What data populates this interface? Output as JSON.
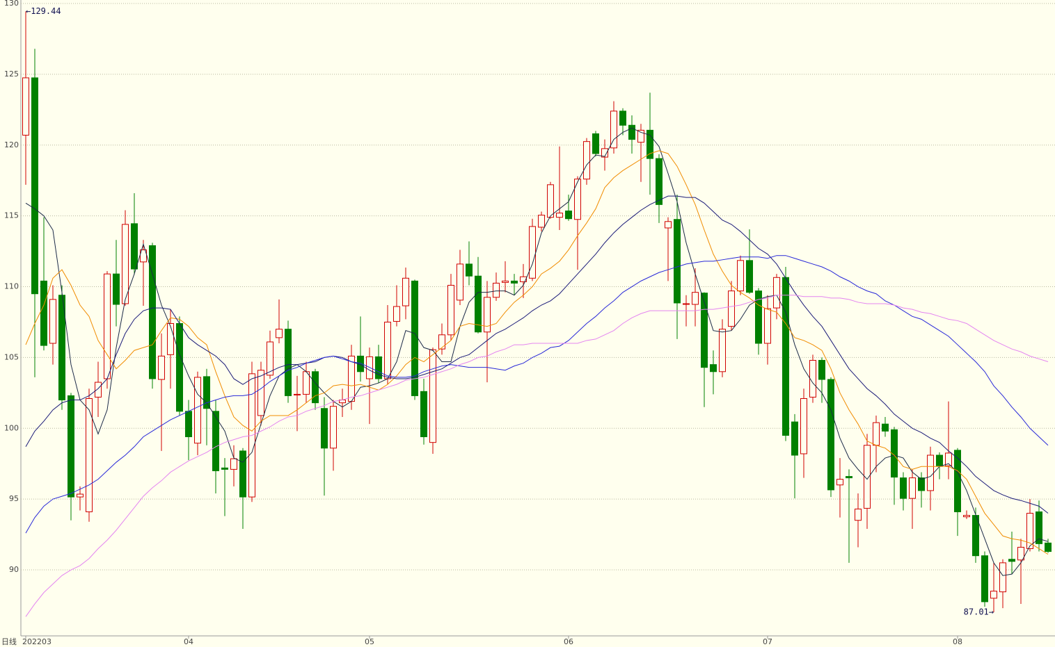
{
  "chart_data": {
    "type": "candlestick",
    "label": "日线",
    "annotations": [
      "←129.44",
      "87.01→"
    ],
    "up_color": "#d00000",
    "down_color": "#008000",
    "grid": true,
    "ylim": [
      85.34,
      130
    ],
    "yticks": [
      90,
      95,
      100,
      105,
      110,
      115,
      120,
      125,
      130
    ],
    "categories": [
      "202203",
      null,
      null,
      null,
      null,
      null,
      null,
      null,
      null,
      null,
      null,
      null,
      null,
      null,
      null,
      null,
      null,
      null,
      "04",
      null,
      null,
      null,
      null,
      null,
      null,
      null,
      null,
      null,
      null,
      null,
      null,
      null,
      null,
      null,
      null,
      null,
      null,
      null,
      "05",
      null,
      null,
      null,
      null,
      null,
      null,
      null,
      null,
      null,
      null,
      null,
      null,
      null,
      null,
      null,
      null,
      null,
      null,
      null,
      null,
      null,
      "06",
      null,
      null,
      null,
      null,
      null,
      null,
      null,
      null,
      null,
      null,
      null,
      null,
      null,
      null,
      null,
      null,
      null,
      null,
      null,
      null,
      null,
      "07",
      null,
      null,
      null,
      null,
      null,
      null,
      null,
      null,
      null,
      null,
      null,
      null,
      null,
      null,
      null,
      null,
      null,
      null,
      null,
      null,
      "08",
      null,
      null,
      null,
      null,
      null,
      null,
      null,
      null,
      null,
      null
    ],
    "open": [
      120.7,
      124.75,
      110.4,
      106.0,
      109.4,
      102.3,
      95.15,
      94.1,
      102.2,
      103.5,
      110.9,
      108.8,
      114.45,
      111.75,
      112.9,
      103.45,
      105.2,
      107.4,
      101.2,
      98.95,
      103.65,
      101.2,
      97.2,
      97.1,
      98.4,
      95.15,
      100.9,
      103.75,
      106.4,
      107.0,
      102.35,
      102.4,
      104.0,
      101.4,
      98.6,
      101.8,
      101.9,
      105.1,
      103.5,
      105.05,
      103.5,
      107.55,
      108.65,
      110.4,
      102.6,
      99.0,
      105.6,
      106.6,
      109.05,
      111.6,
      110.75,
      106.8,
      109.25,
      110.3,
      110.4,
      110.35,
      110.6,
      114.2,
      114.9,
      114.9,
      115.35,
      114.75,
      117.6,
      120.8,
      119.15,
      119.8,
      122.4,
      121.4,
      120.2,
      121.05,
      119.05,
      114.15,
      114.75,
      108.75,
      108.75,
      109.55,
      104.5,
      104.0,
      107.2,
      109.7,
      111.85,
      109.7,
      106.0,
      108.5,
      110.65,
      100.45,
      98.2,
      102.2,
      104.8,
      103.45,
      96.0,
      96.6,
      93.5,
      94.35,
      98.8,
      100.3,
      99.9,
      96.5,
      95.05,
      96.5,
      95.6,
      98.1,
      97.35,
      98.45,
      93.75,
      93.85,
      91.0,
      88.0,
      88.45,
      90.75,
      90.7,
      91.5,
      94.1,
      91.9
    ],
    "high": [
      129.44,
      126.8,
      114.9,
      110.1,
      110.1,
      102.5,
      95.9,
      102.8,
      104.7,
      111.1,
      113.3,
      115.4,
      116.6,
      113.3,
      113.1,
      106.7,
      108.4,
      107.9,
      102.0,
      104.0,
      104.2,
      102.0,
      97.9,
      98.8,
      98.6,
      104.7,
      104.7,
      106.9,
      109.1,
      107.6,
      103.7,
      104.7,
      104.2,
      102.2,
      102.0,
      102.8,
      105.9,
      107.9,
      105.7,
      105.9,
      108.7,
      110.1,
      111.35,
      110.5,
      103.5,
      105.7,
      107.4,
      110.9,
      112.6,
      113.2,
      112.1,
      110.4,
      111.0,
      111.8,
      110.9,
      111.6,
      114.8,
      115.3,
      117.4,
      119.9,
      116.5,
      117.8,
      120.5,
      121.0,
      120.4,
      123.1,
      122.6,
      122.1,
      121.5,
      123.7,
      119.35,
      114.9,
      116.5,
      109.4,
      111.3,
      109.6,
      105.5,
      107.7,
      110.4,
      112.2,
      114.05,
      109.9,
      109.4,
      110.9,
      111.4,
      101.0,
      102.8,
      105.2,
      105.0,
      103.6,
      97.9,
      97.1,
      95.4,
      99.6,
      100.9,
      100.8,
      100.1,
      96.9,
      97.1,
      96.9,
      98.7,
      98.3,
      101.9,
      98.6,
      94.2,
      94.4,
      91.3,
      90.5,
      90.75,
      92.7,
      92.2,
      95.0,
      94.9,
      92.2
    ],
    "low": [
      117.2,
      103.6,
      105.5,
      104.5,
      101.3,
      93.5,
      94.2,
      93.4,
      100.8,
      102.8,
      107.2,
      108.65,
      110.85,
      108.65,
      102.8,
      98.4,
      102.8,
      100.9,
      97.75,
      98.1,
      98.8,
      95.4,
      93.8,
      95.9,
      92.9,
      94.8,
      100.2,
      103.5,
      106.0,
      101.8,
      99.8,
      101.8,
      101.3,
      95.25,
      97.0,
      100.8,
      101.3,
      103.3,
      100.3,
      103.2,
      103.1,
      107.2,
      107.7,
      102.0,
      98.85,
      98.2,
      105.2,
      106.2,
      108.7,
      110.1,
      106.7,
      103.25,
      109.0,
      109.6,
      109.4,
      109.2,
      110.4,
      113.9,
      114.8,
      114.0,
      114.65,
      111.2,
      117.2,
      119.2,
      118.2,
      119.4,
      120.7,
      119.4,
      117.4,
      116.5,
      114.5,
      110.4,
      106.3,
      107.2,
      107.2,
      101.5,
      102.4,
      103.6,
      106.9,
      109.4,
      109.5,
      105.2,
      104.5,
      107.7,
      99.1,
      95.05,
      96.5,
      101.8,
      101.8,
      95.15,
      93.7,
      90.5,
      91.6,
      92.9,
      96.9,
      99.4,
      94.6,
      94.2,
      92.9,
      94.4,
      94.2,
      96.4,
      96.4,
      92.4,
      93.6,
      90.5,
      87.4,
      87.01,
      87.3,
      89.7,
      87.6,
      91.3,
      91.3,
      91.2
    ],
    "close": [
      124.75,
      109.5,
      105.85,
      109.1,
      102.0,
      95.15,
      95.35,
      102.1,
      103.25,
      110.9,
      108.75,
      114.4,
      111.25,
      112.6,
      103.5,
      105.1,
      107.4,
      101.2,
      99.4,
      103.6,
      101.4,
      97.0,
      97.1,
      97.85,
      95.15,
      103.85,
      104.1,
      106.1,
      107.0,
      102.3,
      102.4,
      104.0,
      101.8,
      98.6,
      101.55,
      102.0,
      105.1,
      104.0,
      105.05,
      103.5,
      107.5,
      108.6,
      110.6,
      102.3,
      99.4,
      105.55,
      106.6,
      110.1,
      111.6,
      110.75,
      106.8,
      109.25,
      110.25,
      110.4,
      110.25,
      110.7,
      114.25,
      115.05,
      117.2,
      115.2,
      114.8,
      117.6,
      120.25,
      119.4,
      119.75,
      122.4,
      121.4,
      120.4,
      121.05,
      119.05,
      115.8,
      114.6,
      108.85,
      108.8,
      109.6,
      104.3,
      104.0,
      107.0,
      109.7,
      111.85,
      109.6,
      106.0,
      108.45,
      110.65,
      99.5,
      98.1,
      102.1,
      104.8,
      103.45,
      95.65,
      96.4,
      96.5,
      94.3,
      98.8,
      100.4,
      99.8,
      96.55,
      95.05,
      96.5,
      95.6,
      98.1,
      97.35,
      98.25,
      94.1,
      93.85,
      91.0,
      87.75,
      88.5,
      90.5,
      90.6,
      91.6,
      94.0,
      91.85,
      91.3
    ],
    "lines": [
      {
        "color": "#1c2a48",
        "values": [
          115.9,
          115.5,
          115.0,
          114.0,
          109.6,
          104.5,
          102.0,
          101.3,
          99.6,
          101.3,
          105.7,
          109.1,
          110.9,
          113.0,
          110.9,
          108.7,
          107.2,
          105.2,
          103.7,
          102.4,
          101.8,
          100.8,
          99.8,
          97.9,
          97.6,
          98.3,
          100.3,
          102.3,
          103.7,
          104.2,
          104.5,
          104.0,
          103.2,
          102.5,
          101.9,
          101.5,
          101.9,
          102.9,
          103.0,
          103.2,
          103.5,
          104.7,
          106.9,
          106.7,
          105.7,
          105.5,
          104.7,
          104.7,
          107.2,
          108.9,
          109.6,
          109.6,
          109.7,
          109.7,
          109.4,
          110.1,
          111.6,
          113.8,
          115.0,
          115.5,
          116.0,
          117.4,
          118.6,
          119.3,
          119.2,
          120.4,
          120.9,
          121.2,
          120.9,
          120.7,
          119.9,
          118.0,
          116.0,
          113.1,
          110.9,
          108.9,
          106.9,
          106.8,
          106.9,
          107.7,
          108.7,
          109.1,
          109.3,
          109.4,
          108.2,
          105.9,
          104.2,
          103.2,
          102.5,
          101.3,
          99.3,
          97.9,
          97.1,
          96.4,
          97.3,
          97.9,
          98.1,
          97.9,
          96.9,
          96.4,
          96.6,
          97.3,
          97.5,
          96.9,
          95.6,
          93.9,
          92.2,
          90.5,
          89.6,
          89.7,
          90.5,
          91.7,
          92.2,
          92.0
        ]
      },
      {
        "color": "#f08c00",
        "values": [
          105.9,
          107.4,
          108.7,
          110.6,
          111.2,
          110.1,
          108.7,
          107.9,
          106.2,
          105.2,
          104.2,
          104.8,
          105.5,
          105.7,
          105.9,
          106.9,
          107.8,
          107.7,
          107.2,
          106.4,
          105.9,
          104.0,
          102.3,
          100.8,
          100.2,
          99.8,
          100.5,
          100.9,
          100.9,
          100.9,
          101.3,
          101.8,
          102.3,
          102.5,
          103.0,
          103.1,
          103.0,
          103.1,
          102.9,
          102.7,
          103.1,
          103.7,
          104.5,
          105.0,
          104.7,
          105.2,
          105.7,
          106.2,
          107.2,
          107.4,
          107.3,
          107.2,
          107.4,
          108.2,
          108.9,
          109.4,
          110.0,
          110.9,
          111.3,
          111.8,
          112.6,
          113.6,
          114.5,
          115.5,
          117.0,
          117.7,
          118.2,
          118.6,
          119.0,
          119.4,
          119.6,
          119.4,
          118.5,
          117.2,
          115.8,
          114.0,
          112.3,
          111.1,
          110.1,
          109.6,
          109.2,
          108.7,
          108.4,
          108.2,
          107.4,
          106.4,
          106.2,
          105.9,
          105.5,
          104.2,
          102.5,
          101.3,
          100.3,
          99.1,
          98.8,
          98.6,
          98.1,
          97.3,
          97.1,
          97.3,
          97.3,
          97.3,
          97.3,
          97.0,
          96.4,
          95.2,
          94.0,
          93.2,
          92.4,
          92.2,
          92.1,
          91.9,
          91.5,
          91.1
        ]
      },
      {
        "color": "#1a1a78",
        "values": [
          98.7,
          99.8,
          100.5,
          101.3,
          101.8,
          102.0,
          102.0,
          102.3,
          102.8,
          103.5,
          105.2,
          106.7,
          107.7,
          108.3,
          108.5,
          108.5,
          108.4,
          107.4,
          106.4,
          105.9,
          105.5,
          105.1,
          104.5,
          103.5,
          103.1,
          103.5,
          103.7,
          104.0,
          104.3,
          104.5,
          104.5,
          104.6,
          104.7,
          105.0,
          105.1,
          105.0,
          104.7,
          104.5,
          104.1,
          103.8,
          103.6,
          103.5,
          103.5,
          103.6,
          103.8,
          104.0,
          104.2,
          104.6,
          105.0,
          105.2,
          105.7,
          106.2,
          106.7,
          107.0,
          107.4,
          107.8,
          108.3,
          108.7,
          109.0,
          109.5,
          110.2,
          110.9,
          111.6,
          112.3,
          113.1,
          113.8,
          114.4,
          114.9,
          115.4,
          115.8,
          116.1,
          116.4,
          116.4,
          116.3,
          116.3,
          115.9,
          115.3,
          114.7,
          114.4,
          113.9,
          113.3,
          112.7,
          112.3,
          111.6,
          110.6,
          109.6,
          108.7,
          107.9,
          107.2,
          106.2,
          105.2,
          104.2,
          103.5,
          102.8,
          102.3,
          101.7,
          101.0,
          100.5,
          100.0,
          99.7,
          99.3,
          99.0,
          98.4,
          97.9,
          97.3,
          96.6,
          96.1,
          95.6,
          95.3,
          95.05,
          94.9,
          94.7,
          94.5,
          94.0
        ]
      },
      {
        "color": "#2828d8",
        "values": [
          92.6,
          93.7,
          94.5,
          95.0,
          95.2,
          95.4,
          95.7,
          96.0,
          96.4,
          97.0,
          97.6,
          98.1,
          98.7,
          99.4,
          99.8,
          100.2,
          100.6,
          100.9,
          101.2,
          101.5,
          101.8,
          102.0,
          102.2,
          102.3,
          102.3,
          102.4,
          102.8,
          103.3,
          103.7,
          104.1,
          104.3,
          104.6,
          104.8,
          105.0,
          105.1,
          104.9,
          104.7,
          104.6,
          104.3,
          104.0,
          103.7,
          103.6,
          103.6,
          103.7,
          104.0,
          104.2,
          104.4,
          104.5,
          104.4,
          104.3,
          104.3,
          104.3,
          104.2,
          104.1,
          104.4,
          104.6,
          105.0,
          105.3,
          105.7,
          105.8,
          106.2,
          106.8,
          107.4,
          107.9,
          108.5,
          109.0,
          109.6,
          110.0,
          110.4,
          110.7,
          111.0,
          111.2,
          111.4,
          111.6,
          111.7,
          111.8,
          111.8,
          111.9,
          112.0,
          112.1,
          112.1,
          112.1,
          112.0,
          112.2,
          112.2,
          112.0,
          111.8,
          111.6,
          111.4,
          111.1,
          110.7,
          110.4,
          110.0,
          109.7,
          109.5,
          109.0,
          108.7,
          108.3,
          107.9,
          107.7,
          107.3,
          106.9,
          106.5,
          105.9,
          105.3,
          104.7,
          104.0,
          103.0,
          102.3,
          101.5,
          100.8,
          100.0,
          99.4,
          98.8
        ]
      },
      {
        "color": "#e484f0",
        "values": [
          86.7,
          87.6,
          88.4,
          89.0,
          89.6,
          90.0,
          90.3,
          90.8,
          91.5,
          92.1,
          92.8,
          93.6,
          94.4,
          95.2,
          95.8,
          96.3,
          96.9,
          97.3,
          97.7,
          98.0,
          98.3,
          98.7,
          99.0,
          99.2,
          99.4,
          99.5,
          99.8,
          100.1,
          100.5,
          100.8,
          100.9,
          101.2,
          101.4,
          101.6,
          101.9,
          102.0,
          102.2,
          102.3,
          102.5,
          102.7,
          102.9,
          103.1,
          103.4,
          103.5,
          103.6,
          103.8,
          104.0,
          104.2,
          104.5,
          104.7,
          105.0,
          105.1,
          105.4,
          105.6,
          105.9,
          105.9,
          106.0,
          106.0,
          106.0,
          106.0,
          106.0,
          106.0,
          106.2,
          106.3,
          106.6,
          106.9,
          107.4,
          107.8,
          108.1,
          108.3,
          108.3,
          108.3,
          108.3,
          108.3,
          108.3,
          108.4,
          108.4,
          108.5,
          108.6,
          108.7,
          108.9,
          109.1,
          109.2,
          109.4,
          109.4,
          109.4,
          109.3,
          109.3,
          109.3,
          109.2,
          109.2,
          109.1,
          108.9,
          108.8,
          108.8,
          108.8,
          108.7,
          108.5,
          108.4,
          108.2,
          108.1,
          107.9,
          107.7,
          107.6,
          107.4,
          107.0,
          106.6,
          106.2,
          105.9,
          105.6,
          105.4,
          105.1,
          104.9,
          104.7
        ]
      }
    ]
  }
}
